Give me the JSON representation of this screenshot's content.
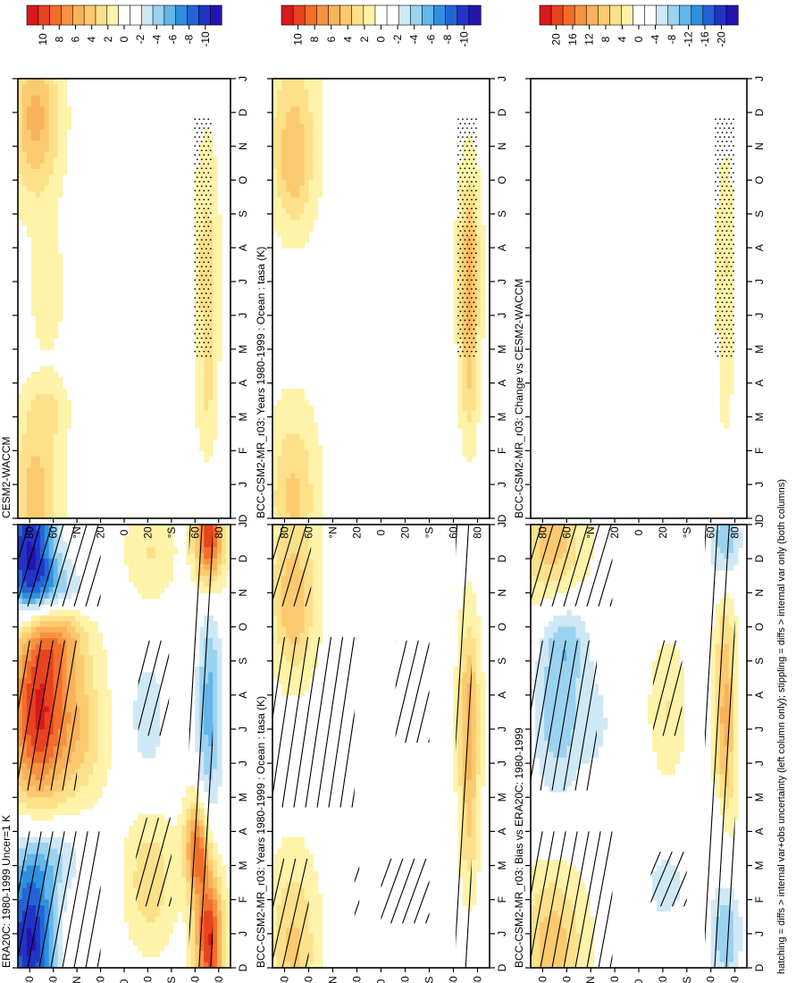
{
  "footnote": "hatching = diffs > internal var+obs uncertainty (left column only); stippling = diffs > internal var only (both columns)",
  "month_ticks": [
    "D",
    "J",
    "F",
    "M",
    "A",
    "M",
    "J",
    "J",
    "A",
    "S",
    "O",
    "N",
    "D",
    "J"
  ],
  "lat_ticks": [
    "80",
    "60",
    "°N",
    "20",
    "0",
    "20",
    "°S",
    "60",
    "80"
  ],
  "palettes": {
    "p10": [
      "#d7191c",
      "#e8421f",
      "#f46d2a",
      "#f79240",
      "#f9b25a",
      "#fcca6e",
      "#fde08a",
      "#fef3a8",
      "#ffffff",
      "#ffffff",
      "#cfe8f6",
      "#9bd2f0",
      "#62b6ea",
      "#2f90df",
      "#2364d6",
      "#2134c6",
      "#2414b0"
    ],
    "p20": [
      "#d7191c",
      "#e8421f",
      "#f46d2a",
      "#f79240",
      "#f9b25a",
      "#fcca6e",
      "#fde08a",
      "#fef3a8",
      "#ffffff",
      "#ffffff",
      "#cfe8f6",
      "#9bd2f0",
      "#62b6ea",
      "#2f90df",
      "#2364d6",
      "#2134c6",
      "#2414b0"
    ]
  },
  "colorbars": {
    "cb10": [
      "10",
      "8",
      "6",
      "4",
      "2",
      "0",
      "-2",
      "-4",
      "-6",
      "-8",
      "-10"
    ],
    "cb20": [
      "20",
      "16",
      "12",
      "8",
      "4",
      "0",
      "-4",
      "-8",
      "-12",
      "-16",
      "-20"
    ]
  },
  "chart_data": [
    {
      "type": "heatmap",
      "title": "BCC-CSM2-MR_r03: Years 1980-1999 : Ocean : tasa (K)",
      "x_axis": "month (D to J)",
      "y_axis": "latitude (90N to 90S)",
      "colorbar": "cb10",
      "palette": "p10",
      "blobs": [
        {
          "m": 0.6,
          "lat": 73,
          "sm": 1.8,
          "sl": 14,
          "v": 3.5
        },
        {
          "m": 11.4,
          "lat": 73,
          "sm": 1.8,
          "sl": 14,
          "v": 3.5
        },
        {
          "m": 10.0,
          "lat": 72,
          "sm": 0.9,
          "sl": 9,
          "v": 1.5
        },
        {
          "m": 7.2,
          "lat": -73,
          "sm": 2.0,
          "sl": 6,
          "v": 5.2
        },
        {
          "m": 3.8,
          "lat": -73,
          "sm": 1.3,
          "sl": 5,
          "v": 2.0
        }
      ],
      "hatch": [
        {
          "m0": 0,
          "m1": 3.2,
          "l0": 90,
          "l1": 60
        },
        {
          "m0": 10.6,
          "m1": 13,
          "l0": 90,
          "l1": 58
        },
        {
          "m0": 4.7,
          "m1": 9.7,
          "l0": 90,
          "l1": 22
        },
        {
          "m0": 1.4,
          "m1": 3.4,
          "l0": 22,
          "l1": 18
        },
        {
          "m0": 1.3,
          "m1": 3.2,
          "l0": 0,
          "l1": -40
        },
        {
          "m0": 6.6,
          "m1": 9.6,
          "l0": -12,
          "l1": -40
        },
        {
          "m0": 0,
          "m1": 13,
          "l0": -62,
          "l1": -75
        }
      ],
      "stipple": []
    },
    {
      "type": "heatmap",
      "title": "ERA20C: 1980-1999 Uncer=1 K",
      "colorbar": "cb10",
      "palette": "p10",
      "blobs": [
        {
          "m": 0.8,
          "lat": 80,
          "sm": 1.7,
          "sl": 16,
          "v": -10
        },
        {
          "m": 12.3,
          "lat": 80,
          "sm": 1.4,
          "sl": 16,
          "v": -10
        },
        {
          "m": 3.3,
          "lat": 60,
          "sm": 0.8,
          "sl": 22,
          "v": -3
        },
        {
          "m": 11.1,
          "lat": 60,
          "sm": 0.6,
          "sl": 22,
          "v": -4
        },
        {
          "m": 7.5,
          "lat": 72,
          "sm": 1.9,
          "sl": 18,
          "v": 10
        },
        {
          "m": 7.0,
          "lat": 35,
          "sm": 1.4,
          "sl": 14,
          "v": 3
        },
        {
          "m": 9.7,
          "lat": 58,
          "sm": 0.8,
          "sl": 18,
          "v": 4
        },
        {
          "m": 2.6,
          "lat": -22,
          "sm": 1.3,
          "sl": 14,
          "v": 3
        },
        {
          "m": 12.2,
          "lat": -22,
          "sm": 1.0,
          "sl": 14,
          "v": 2
        },
        {
          "m": 7.4,
          "lat": -20,
          "sm": 1.4,
          "sl": 12,
          "v": -3
        },
        {
          "m": 0.8,
          "lat": -72,
          "sm": 1.4,
          "sl": 8,
          "v": 10
        },
        {
          "m": 12.6,
          "lat": -72,
          "sm": 1.0,
          "sl": 8,
          "v": 10
        },
        {
          "m": 3.5,
          "lat": -62,
          "sm": 1.0,
          "sl": 7,
          "v": 8
        },
        {
          "m": 7.5,
          "lat": -72,
          "sm": 2.6,
          "sl": 8,
          "v": -5
        }
      ],
      "hatch": [
        {
          "m0": 0,
          "m1": 4,
          "l0": 90,
          "l1": 20
        },
        {
          "m0": 10.6,
          "m1": 13,
          "l0": 90,
          "l1": 20
        },
        {
          "m0": 5.2,
          "m1": 9.6,
          "l0": 90,
          "l1": 40
        },
        {
          "m0": 1.8,
          "m1": 4.4,
          "l0": -10,
          "l1": -40
        },
        {
          "m0": 6.8,
          "m1": 9.6,
          "l0": -12,
          "l1": -38
        },
        {
          "m0": 0,
          "m1": 13,
          "l0": -55,
          "l1": -75
        }
      ],
      "stipple": []
    },
    {
      "type": "heatmap",
      "title": "BCC-CSM2-MR_r03: Bias vs ERA20C: 1980-1999",
      "colorbar": "cb20",
      "palette": "p20",
      "blobs": [
        {
          "m": 0.7,
          "lat": 72,
          "sm": 1.5,
          "sl": 18,
          "v": 8
        },
        {
          "m": 12.4,
          "lat": 72,
          "sm": 1.3,
          "sl": 18,
          "v": 8
        },
        {
          "m": 7.3,
          "lat": 68,
          "sm": 1.8,
          "sl": 16,
          "v": -8
        },
        {
          "m": 7.2,
          "lat": 34,
          "sm": 1.3,
          "sl": 12,
          "v": -4
        },
        {
          "m": 9.7,
          "lat": 60,
          "sm": 0.9,
          "sl": 14,
          "v": -6
        },
        {
          "m": 2.4,
          "lat": -22,
          "sm": 0.8,
          "sl": 12,
          "v": -6
        },
        {
          "m": 7.6,
          "lat": -24,
          "sm": 1.3,
          "sl": 10,
          "v": 4
        },
        {
          "m": 1.0,
          "lat": -72,
          "sm": 1.2,
          "sl": 10,
          "v": -9
        },
        {
          "m": 12.5,
          "lat": -72,
          "sm": 0.9,
          "sl": 10,
          "v": -9
        },
        {
          "m": 7.4,
          "lat": -72,
          "sm": 2.4,
          "sl": 6,
          "v": 10
        },
        {
          "m": 4.0,
          "lat": -66,
          "sm": 0.8,
          "sl": 6,
          "v": -4
        }
      ],
      "hatch": [
        {
          "m0": 0,
          "m1": 4,
          "l0": 90,
          "l1": 22
        },
        {
          "m0": 10.6,
          "m1": 13,
          "l0": 90,
          "l1": 22
        },
        {
          "m0": 5.2,
          "m1": 9.6,
          "l0": 90,
          "l1": 35
        },
        {
          "m0": 1.8,
          "m1": 3.4,
          "l0": -10,
          "l1": -40
        },
        {
          "m0": 6.8,
          "m1": 9.6,
          "l0": -12,
          "l1": -36
        },
        {
          "m0": 0,
          "m1": 13,
          "l0": -55,
          "l1": -80
        }
      ],
      "stipple": []
    },
    {
      "type": "heatmap",
      "title": "BCC-CSM2-MR_r03: Years 1980-1999 : Ocean : tasa (K)",
      "colorbar": "cb10",
      "palette": "p10",
      "blobs": [
        {
          "m": 0.6,
          "lat": 73,
          "sm": 1.8,
          "sl": 14,
          "v": 3.5
        },
        {
          "m": 11.4,
          "lat": 73,
          "sm": 1.8,
          "sl": 14,
          "v": 3.5
        },
        {
          "m": 10.0,
          "lat": 72,
          "sm": 0.9,
          "sl": 9,
          "v": 1.5
        },
        {
          "m": 7.2,
          "lat": -73,
          "sm": 2.0,
          "sl": 6,
          "v": 5.2
        },
        {
          "m": 3.8,
          "lat": -73,
          "sm": 1.3,
          "sl": 5,
          "v": 2.0
        }
      ],
      "hatch": [],
      "stipple": [
        {
          "m0": 4.7,
          "m1": 11.8,
          "l0": -64,
          "l1": -80
        }
      ]
    },
    {
      "type": "heatmap",
      "title": "CESM2-WACCM",
      "colorbar": "cb10",
      "palette": "p10",
      "blobs": [
        {
          "m": 0.7,
          "lat": 75,
          "sm": 1.6,
          "sl": 14,
          "v": 4
        },
        {
          "m": 11.8,
          "lat": 75,
          "sm": 1.6,
          "sl": 14,
          "v": 5
        },
        {
          "m": 3.2,
          "lat": 65,
          "sm": 0.6,
          "sl": 12,
          "v": 2
        },
        {
          "m": 6.7,
          "lat": 65,
          "sm": 1.2,
          "sl": 10,
          "v": 1.5
        },
        {
          "m": 7.4,
          "lat": -70,
          "sm": 2.5,
          "sl": 7,
          "v": 2.5
        },
        {
          "m": 3.6,
          "lat": -70,
          "sm": 1.2,
          "sl": 6,
          "v": 1.5
        }
      ],
      "hatch": [],
      "stipple": [
        {
          "m0": 4.7,
          "m1": 11.8,
          "l0": -60,
          "l1": -75
        }
      ]
    },
    {
      "type": "heatmap",
      "title": "BCC-CSM2-MR_r03: Change vs CESM2-WACCM",
      "colorbar": "cb20",
      "palette": "p20",
      "blobs": [
        {
          "m": 0.6,
          "lat": 80,
          "sm": 0.8,
          "sl": 10,
          "v": -2.5
        },
        {
          "m": 3.8,
          "lat": 80,
          "sm": 0.5,
          "sl": 8,
          "v": -2
        },
        {
          "m": 11.4,
          "lat": 80,
          "sm": 0.5,
          "sl": 8,
          "v": -2
        },
        {
          "m": 7.4,
          "lat": -72,
          "sm": 2.2,
          "sl": 5,
          "v": 4
        },
        {
          "m": 3.6,
          "lat": -72,
          "sm": 1.0,
          "sl": 4,
          "v": 1.5
        }
      ],
      "hatch": [],
      "stipple": [
        {
          "m0": 4.7,
          "m1": 11.8,
          "l0": -64,
          "l1": -80
        }
      ]
    }
  ]
}
